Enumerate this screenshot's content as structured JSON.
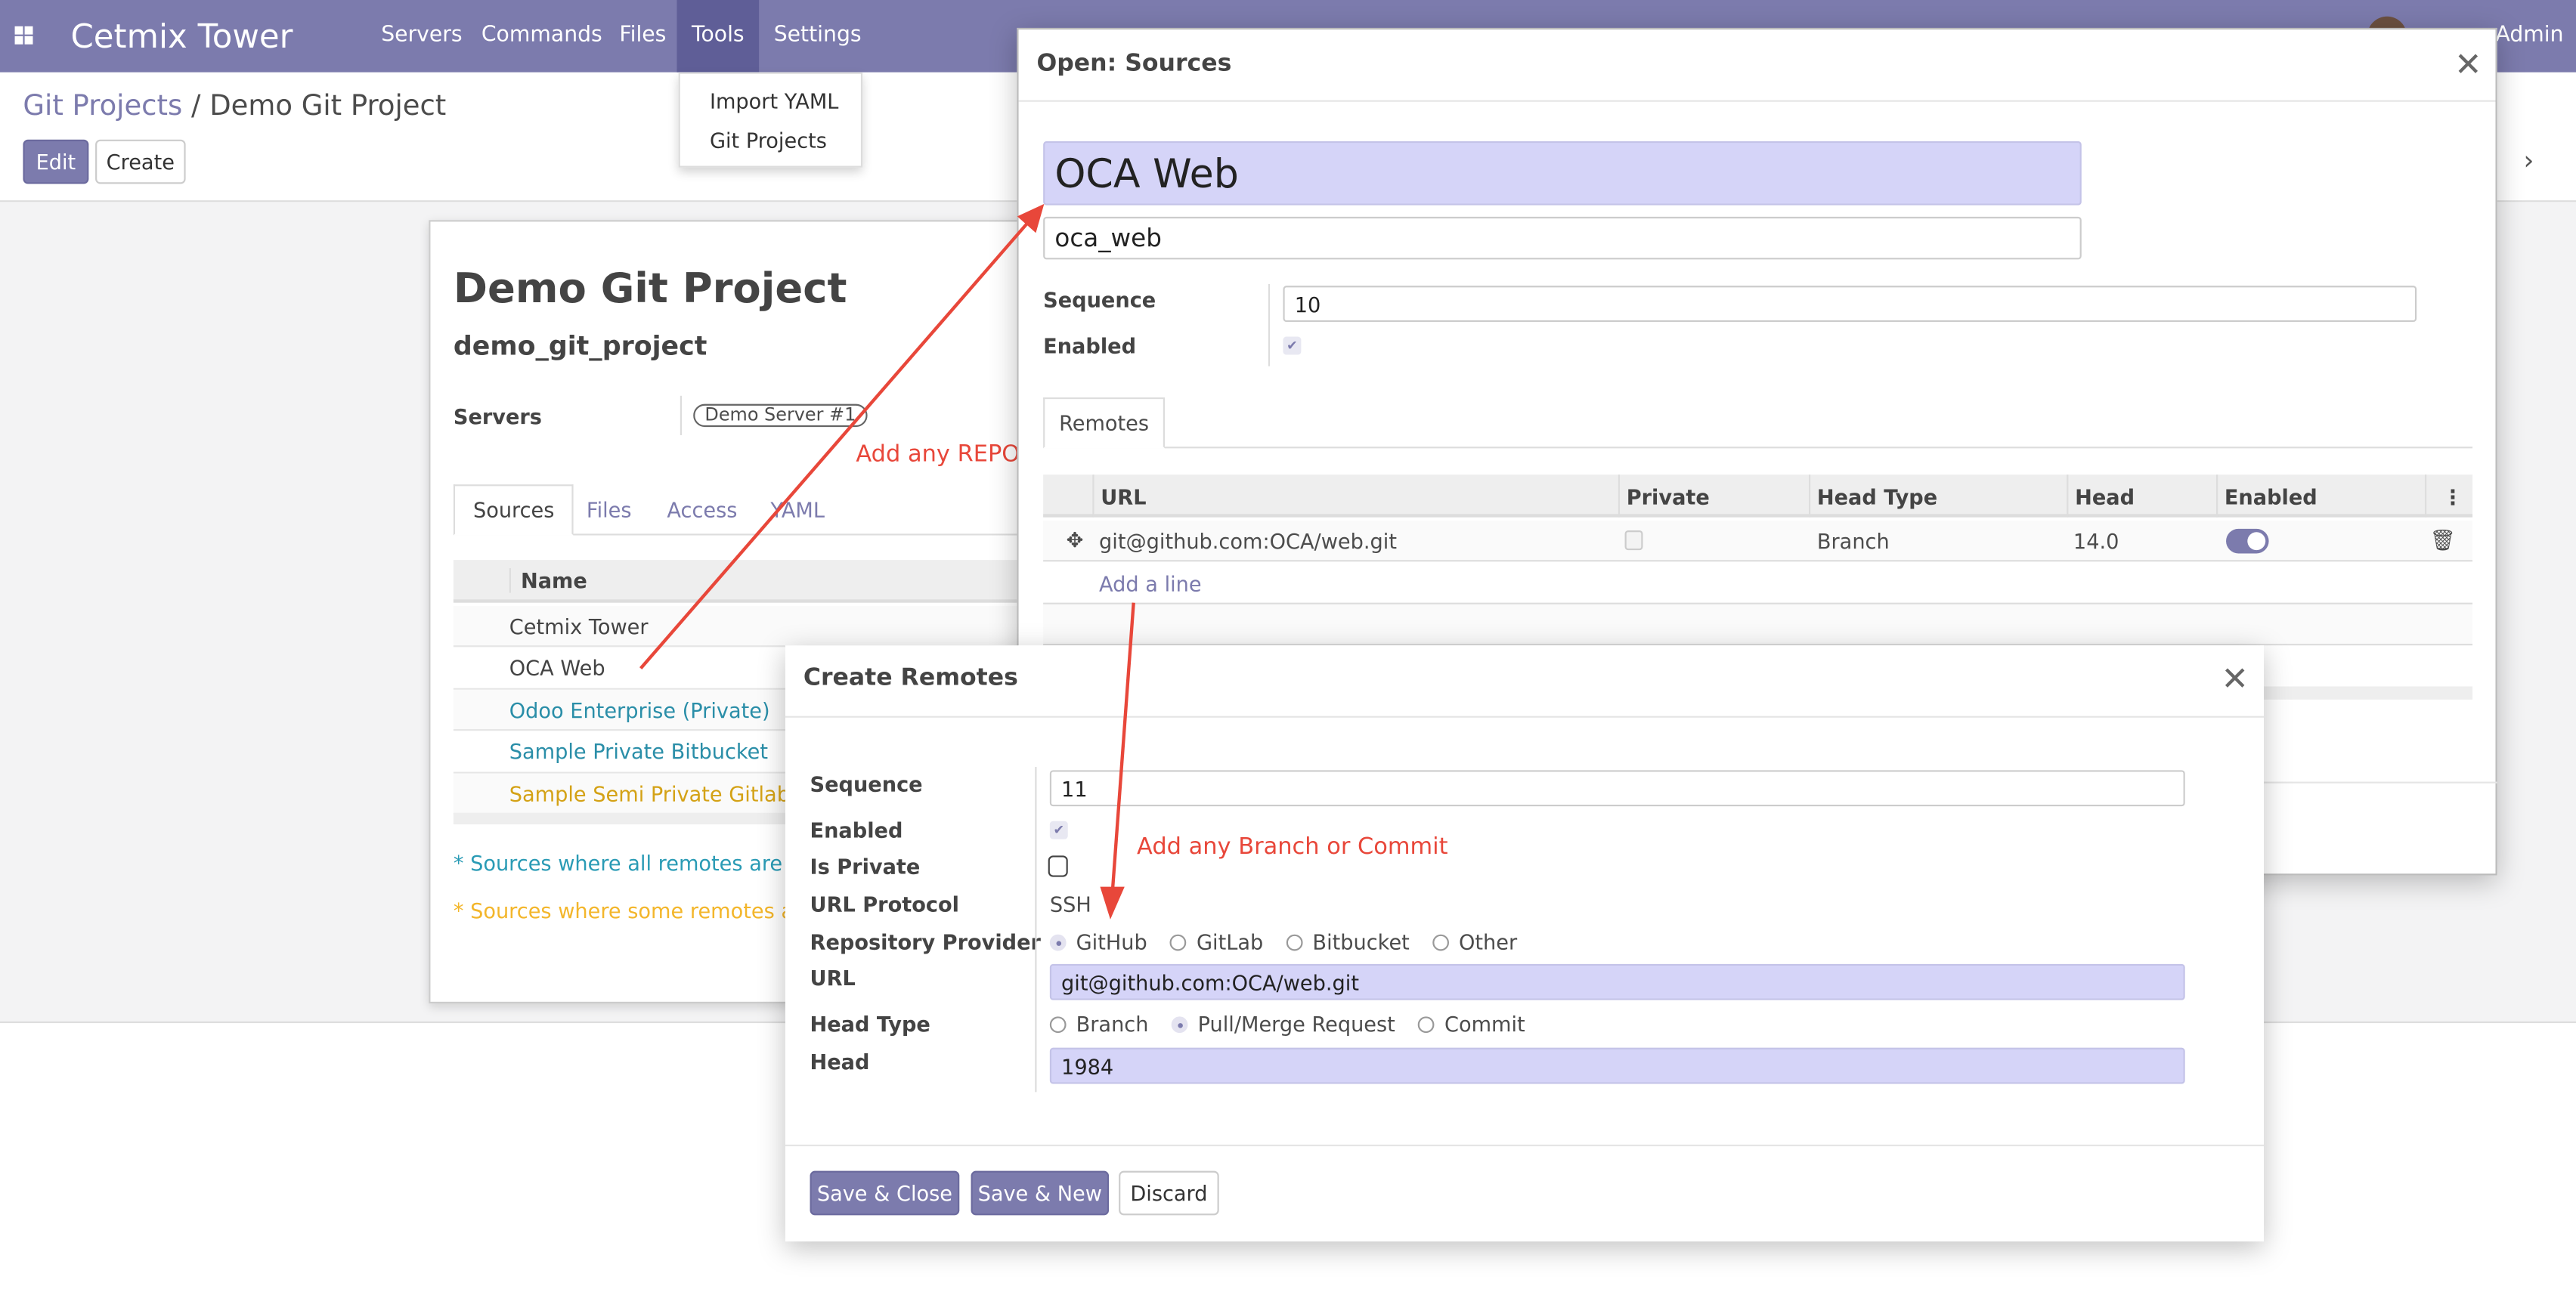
{
  "navbar": {
    "brand": "Cetmix Tower",
    "menu": [
      "Servers",
      "Commands",
      "Files",
      "Tools",
      "Settings"
    ],
    "active": "Tools",
    "user": "Admin",
    "color": "#7c7bad"
  },
  "tools_menu": [
    "Import YAML",
    "Git Projects"
  ],
  "breadcrumb": {
    "parent": "Git Projects",
    "sep": "/",
    "current": "Demo Git Project"
  },
  "buttons": {
    "edit": "Edit",
    "create": "Create"
  },
  "project": {
    "title": "Demo Git Project",
    "ref": "demo_git_project",
    "servers_label": "Servers",
    "server_tag": "Demo Server #1",
    "tabs": [
      "Sources",
      "Files",
      "Access",
      "YAML"
    ],
    "name_header": "Name",
    "sources": [
      {
        "name": "Cetmix Tower",
        "color": "#444444"
      },
      {
        "name": "OCA Web",
        "color": "#444444"
      },
      {
        "name": "Odoo Enterprise (Private)",
        "color": "#2a8ea8"
      },
      {
        "name": "Sample Private Bitbucket",
        "color": "#2a8ea8"
      },
      {
        "name": "Sample Semi Private Gitlab",
        "color": "#d4a216"
      }
    ],
    "note_private": "* Sources where all remotes are pri",
    "note_semi": "* Sources where some remotes are"
  },
  "annotations": {
    "repo": "Add any REPO",
    "branch": "Add any Branch or Commit",
    "color": "#e8473a"
  },
  "sources_dialog": {
    "title": "Open: Sources",
    "name": "OCA Web",
    "ref": "oca_web",
    "sequence_label": "Sequence",
    "sequence": "10",
    "enabled_label": "Enabled",
    "enabled": true,
    "tab": "Remotes",
    "columns": [
      "URL",
      "Private",
      "Head Type",
      "Head",
      "Enabled"
    ],
    "rows": [
      {
        "url": "git@github.com:OCA/web.git",
        "private": false,
        "head_type": "Branch",
        "head": "14.0",
        "enabled": true
      }
    ],
    "add_line": "Add a line"
  },
  "create_dialog": {
    "title": "Create Remotes",
    "labels": {
      "sequence": "Sequence",
      "enabled": "Enabled",
      "is_private": "Is Private",
      "url_protocol": "URL Protocol",
      "provider": "Repository Provider",
      "url": "URL",
      "head_type": "Head Type",
      "head": "Head"
    },
    "sequence": "11",
    "enabled": true,
    "is_private": false,
    "url_protocol": "SSH",
    "providers": [
      "GitHub",
      "GitLab",
      "Bitbucket",
      "Other"
    ],
    "provider_selected": "GitHub",
    "url": "git@github.com:OCA/web.git",
    "head_types": [
      "Branch",
      "Pull/Merge Request",
      "Commit"
    ],
    "head_type_selected": "Pull/Merge Request",
    "head": "1984",
    "buttons": {
      "save_close": "Save & Close",
      "save_new": "Save & New",
      "discard": "Discard"
    }
  }
}
